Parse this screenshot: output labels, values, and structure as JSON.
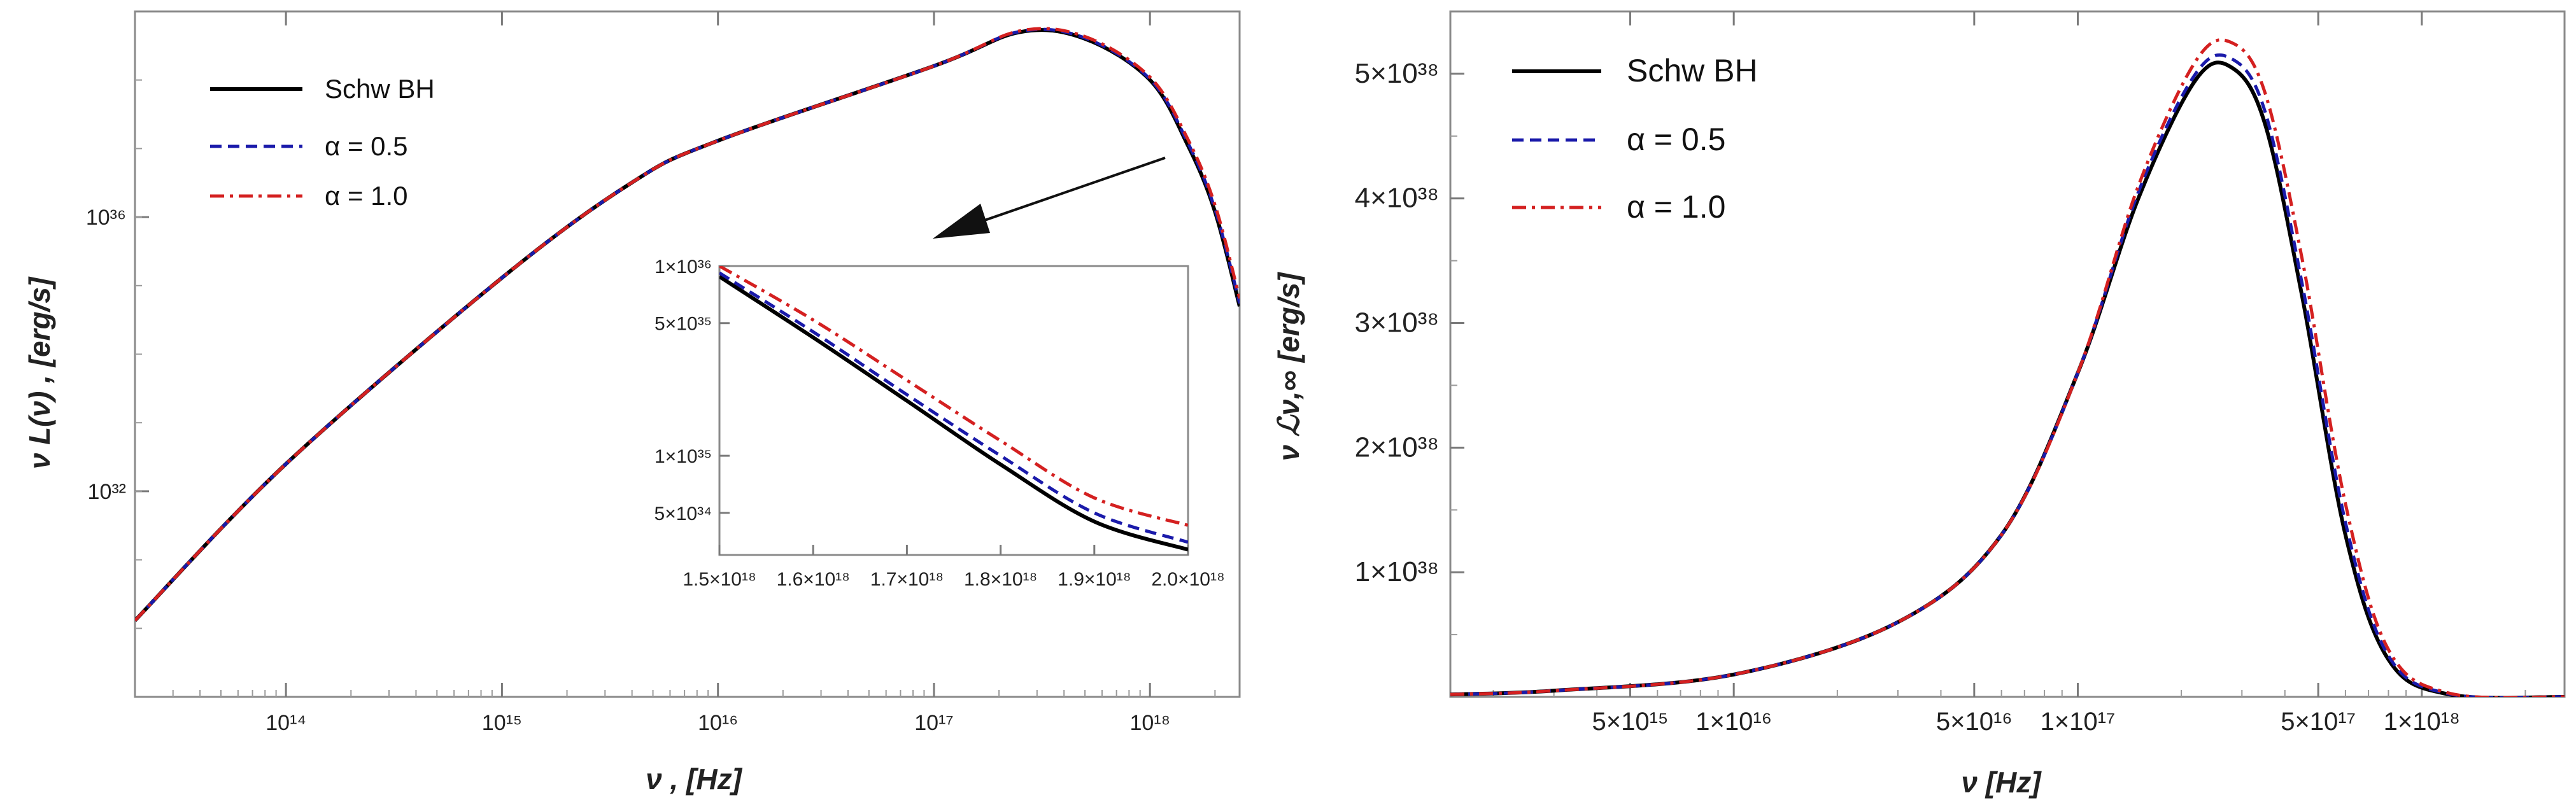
{
  "chart_data": [
    {
      "type": "line",
      "panel": "left",
      "xlabel": "ν ,  [Hz]",
      "ylabel": "ν L(ν) ,  [erg/s]",
      "x_scale": "log",
      "y_scale": "log",
      "xlim": [
        20000000000000.0,
        2.6e+18
      ],
      "ylim": [
        1e+29,
        1e+39
      ],
      "x_ticks": [
        100000000000000.0,
        1000000000000000.0,
        1e+16,
        1e+17,
        1e+18
      ],
      "x_tick_labels": [
        "10¹⁴",
        "10¹⁵",
        "10¹⁶",
        "10¹⁷",
        "10¹⁸"
      ],
      "y_ticks": [
        1e+32,
        1e+36
      ],
      "y_tick_labels": [
        "10³²",
        "10³⁶"
      ],
      "grid": false,
      "legend_position": "top-left",
      "series": [
        {
          "name": "Schw BH",
          "color": "#000000",
          "dash": "solid",
          "x": [
            20000000000000.0,
            100000000000000.0,
            1000000000000000.0,
            4000000000000000.0,
            1e+16,
            1e+17,
            2.5e+17,
            5e+17,
            1e+18,
            1.5e+18,
            2e+18,
            2.6e+18
          ],
          "y": [
            1.3e+30,
            2.5e+32,
            1.3e+35,
            3.2e+36,
            1.3e+37,
            1.6e+38,
            5e+38,
            4e+38,
            1e+38,
            1.1e+37,
            1.2e+36,
            5e+34
          ]
        },
        {
          "name": "α = 0.5",
          "color": "#1a1aaa",
          "dash": "dashed",
          "x": [
            20000000000000.0,
            100000000000000.0,
            1000000000000000.0,
            4000000000000000.0,
            1e+16,
            1e+17,
            2.5e+17,
            5e+17,
            1e+18,
            1.5e+18,
            2e+18,
            2.6e+18
          ],
          "y": [
            1.3e+30,
            2.5e+32,
            1.3e+35,
            3.2e+36,
            1.3e+37,
            1.6e+38,
            5.1e+38,
            4.1e+38,
            1.03e+38,
            1.2e+37,
            1.3e+36,
            5.5e+34
          ]
        },
        {
          "name": "α = 1.0",
          "color": "#d42020",
          "dash": "dashdot",
          "x": [
            20000000000000.0,
            100000000000000.0,
            1000000000000000.0,
            4000000000000000.0,
            1e+16,
            1e+17,
            2.5e+17,
            5e+17,
            1e+18,
            1.5e+18,
            2e+18,
            2.6e+18
          ],
          "y": [
            1.3e+30,
            2.5e+32,
            1.3e+35,
            3.2e+36,
            1.3e+37,
            1.6e+38,
            5.2e+38,
            4.3e+38,
            1.1e+38,
            1.35e+37,
            1.5e+36,
            6.5e+34
          ]
        }
      ],
      "inset": {
        "xlim": [
          1.5e+18,
          2e+18
        ],
        "ylim": [
          3e+34,
          1e+36
        ],
        "y_scale": "log",
        "x_ticks": [
          1.5e+18,
          1.6e+18,
          1.7e+18,
          1.8e+18,
          1.9e+18,
          2e+18
        ],
        "x_tick_labels": [
          "1.5×10¹⁸",
          "1.6×10¹⁸",
          "1.7×10¹⁸",
          "1.8×10¹⁸",
          "1.9×10¹⁸",
          "2.0×10¹⁸"
        ],
        "y_ticks": [
          1e+36,
          5e+35,
          1e+35,
          5e+34
        ],
        "y_tick_labels": [
          "1×10³⁶",
          "5×10³⁵",
          "1×10³⁵",
          "5×10³⁴"
        ],
        "series": [
          {
            "name": "Schw BH",
            "x": [
              1.5e+18,
              1.6e+18,
              1.7e+18,
              1.8e+18,
              1.9e+18,
              2e+18
            ],
            "y": [
              8.8e+35,
              4.2e+35,
              1.95e+35,
              9e+34,
              4.5e+34,
              3.2e+34
            ]
          },
          {
            "name": "α = 0.5",
            "x": [
              1.5e+18,
              1.6e+18,
              1.7e+18,
              1.8e+18,
              1.9e+18,
              2e+18
            ],
            "y": [
              9.2e+35,
              4.5e+35,
              2.1e+35,
              1e+35,
              5e+34,
              3.5e+34
            ]
          },
          {
            "name": "α = 1.0",
            "x": [
              1.5e+18,
              1.6e+18,
              1.7e+18,
              1.8e+18,
              1.9e+18,
              2e+18
            ],
            "y": [
              1e+36,
              5.2e+35,
              2.5e+35,
              1.2e+35,
              6e+34,
              4.3e+34
            ]
          }
        ]
      }
    },
    {
      "type": "line",
      "panel": "right",
      "xlabel": "ν   [Hz]",
      "ylabel": "ν ℒν,∞  [erg/s]",
      "x_scale": "log",
      "y_scale": "linear",
      "xlim": [
        1500000000000000.0,
        2.6e+18
      ],
      "ylim": [
        0,
        5.5e+38
      ],
      "x_ticks": [
        5000000000000000.0,
        1e+16,
        5e+16,
        1e+17,
        5e+17,
        1e+18
      ],
      "x_tick_labels": [
        "5×10¹⁵",
        "1×10¹⁶",
        "5×10¹⁶",
        "1×10¹⁷",
        "5×10¹⁷",
        "1×10¹⁸"
      ],
      "y_ticks": [
        1e+38,
        2e+38,
        3e+38,
        4e+38,
        5e+38
      ],
      "y_tick_labels": [
        "1×10³⁸",
        "2×10³⁸",
        "3×10³⁸",
        "4×10³⁸",
        "5×10³⁸"
      ],
      "grid": false,
      "legend_position": "top-left",
      "series": [
        {
          "name": "Schw BH",
          "color": "#000000",
          "dash": "solid",
          "x": [
            1500000000000000.0,
            3000000000000000.0,
            1e+16,
            3e+16,
            6e+16,
            1e+17,
            1.5e+17,
            2.2e+17,
            2.8e+17,
            3.5e+17,
            4.5e+17,
            6e+17,
            8e+17,
            1.2e+18,
            2.6e+18
          ],
          "y": [
            2e+36,
            5e+36,
            1.8e+37,
            6e+37,
            1.3e+38,
            2.6e+38,
            4e+38,
            4.95e+38,
            5.05e+38,
            4.6e+38,
            3.2e+38,
            1.3e+38,
            3e+37,
            2e+36,
            0
          ]
        },
        {
          "name": "α = 0.5",
          "color": "#1a1aaa",
          "dash": "dashed",
          "x": [
            1500000000000000.0,
            3000000000000000.0,
            1e+16,
            3e+16,
            6e+16,
            1e+17,
            1.5e+17,
            2.2e+17,
            2.8e+17,
            3.5e+17,
            4.5e+17,
            6e+17,
            8e+17,
            1.2e+18,
            2.6e+18
          ],
          "y": [
            2e+36,
            5e+36,
            1.8e+37,
            6e+37,
            1.3e+38,
            2.6e+38,
            4.05e+38,
            5e+38,
            5.12e+38,
            4.7e+38,
            3.3e+38,
            1.4e+38,
            3.3e+37,
            2.4e+36,
            0
          ]
        },
        {
          "name": "α = 1.0",
          "color": "#d42020",
          "dash": "dashdot",
          "x": [
            1500000000000000.0,
            3000000000000000.0,
            1e+16,
            3e+16,
            6e+16,
            1e+17,
            1.5e+17,
            2.2e+17,
            2.8e+17,
            3.5e+17,
            4.5e+17,
            6e+17,
            8e+17,
            1.2e+18,
            2.6e+18
          ],
          "y": [
            2e+36,
            5e+36,
            1.8e+37,
            6e+37,
            1.3e+38,
            2.6e+38,
            4.1e+38,
            5.1e+38,
            5.25e+38,
            4.85e+38,
            3.5e+38,
            1.55e+38,
            3.8e+37,
            3e+36,
            0
          ]
        }
      ]
    }
  ]
}
